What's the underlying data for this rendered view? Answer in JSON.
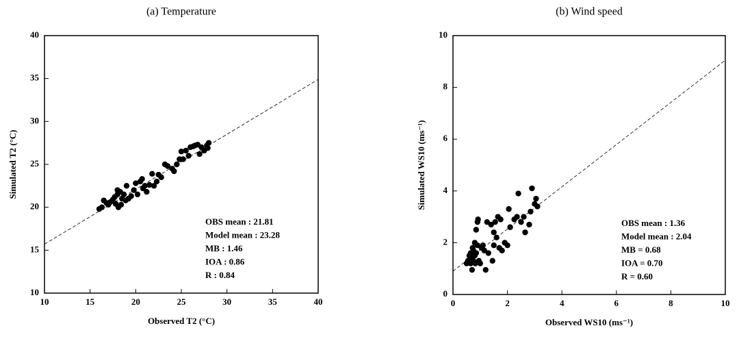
{
  "chart_data": [
    {
      "type": "scatter",
      "title": "(a) Temperature",
      "xlabel": "Observed T2 (°C)",
      "ylabel": "Simulated T2 (°C)",
      "xlim": [
        10,
        40
      ],
      "ylim": [
        10,
        40
      ],
      "xticks": [
        10,
        15,
        20,
        25,
        30,
        35,
        40
      ],
      "yticks": [
        10,
        15,
        20,
        25,
        30,
        35,
        40
      ],
      "color": "#000000",
      "x": [
        16,
        16.3,
        16.5,
        16.8,
        17,
        17.2,
        17.5,
        17.7,
        17.8,
        18,
        18,
        18.1,
        18.3,
        18.4,
        18.5,
        18.7,
        18.9,
        19,
        19.2,
        19.5,
        19.8,
        20,
        20.2,
        20.5,
        20.7,
        20.8,
        21,
        21.2,
        21.5,
        21.8,
        22,
        22.3,
        22.5,
        22.8,
        23.2,
        23.5,
        24,
        24.2,
        24.5,
        24.8,
        25,
        25.2,
        25.5,
        25.8,
        26,
        26.3,
        26.5,
        26.8,
        27,
        27.2,
        27.5,
        27.8,
        28,
        27.9
      ],
      "y": [
        19.8,
        20,
        20.8,
        20.5,
        20.3,
        20.6,
        20.9,
        21.2,
        20.4,
        22,
        21.5,
        20,
        21.8,
        20.3,
        21,
        21.5,
        20.8,
        22.5,
        21,
        21.3,
        22,
        22.8,
        21.5,
        23,
        23.3,
        22.2,
        22.5,
        21.8,
        22.6,
        23.9,
        22.5,
        23,
        23.8,
        23.5,
        25,
        24.8,
        24.5,
        24.2,
        25,
        25.6,
        26.5,
        25.6,
        26.6,
        26,
        27,
        27.1,
        27.2,
        27.3,
        26.2,
        27,
        26.6,
        27.2,
        27.5,
        26.9
      ],
      "fit_line": {
        "x": [
          10,
          40
        ],
        "y": [
          15.7,
          34.9
        ]
      },
      "annotations": [
        "OBS mean : 21.81",
        "Model mean : 23.28",
        "MB : 1.46",
        "IOA : 0.86",
        "R : 0.84"
      ]
    },
    {
      "type": "scatter",
      "title": "(b) Wind speed",
      "xlabel": "Observed WS10 (ms⁻¹)",
      "ylabel": "Simulated WS10 (ms⁻¹)",
      "xlim": [
        0,
        10
      ],
      "ylim": [
        0,
        10
      ],
      "xticks": [
        0,
        2,
        4,
        6,
        8,
        10
      ],
      "yticks": [
        0,
        2,
        4,
        6,
        8,
        10
      ],
      "color": "#000000",
      "x": [
        0.5,
        0.55,
        0.6,
        0.65,
        0.65,
        0.7,
        0.7,
        0.72,
        0.75,
        0.75,
        0.8,
        0.8,
        0.82,
        0.85,
        0.85,
        0.9,
        0.9,
        0.92,
        0.95,
        1.0,
        1.05,
        1.1,
        1.15,
        1.2,
        1.25,
        1.3,
        1.4,
        1.45,
        1.5,
        1.5,
        1.55,
        1.6,
        1.65,
        1.7,
        1.75,
        1.8,
        1.9,
        2.0,
        2.05,
        2.1,
        2.25,
        2.35,
        2.4,
        2.5,
        2.6,
        2.65,
        2.8,
        2.85,
        2.9,
        3.0,
        3.05,
        3.1
      ],
      "y": [
        1.2,
        1.3,
        1.5,
        1.2,
        1.6,
        1.4,
        0.95,
        1.8,
        1.3,
        1.7,
        1.5,
        2.0,
        1.2,
        1.6,
        2.5,
        1.9,
        2.8,
        2.9,
        1.3,
        1.2,
        1.8,
        1.9,
        1.7,
        0.95,
        2.8,
        1.6,
        2.7,
        1.3,
        2.4,
        1.9,
        2.8,
        2.2,
        3.0,
        1.8,
        2.9,
        1.7,
        2.0,
        1.9,
        3.3,
        2.6,
        2.9,
        3.0,
        3.9,
        2.8,
        3.0,
        2.4,
        2.7,
        3.2,
        4.1,
        3.5,
        3.7,
        3.4
      ],
      "fit_line": {
        "x": [
          0,
          10
        ],
        "y": [
          0.9,
          9.05
        ]
      },
      "annotations": [
        "OBS mean : 1.36",
        "Model mean : 2.04",
        "MB = 0.68",
        "IOA = 0.70",
        "R = 0.60"
      ]
    }
  ]
}
